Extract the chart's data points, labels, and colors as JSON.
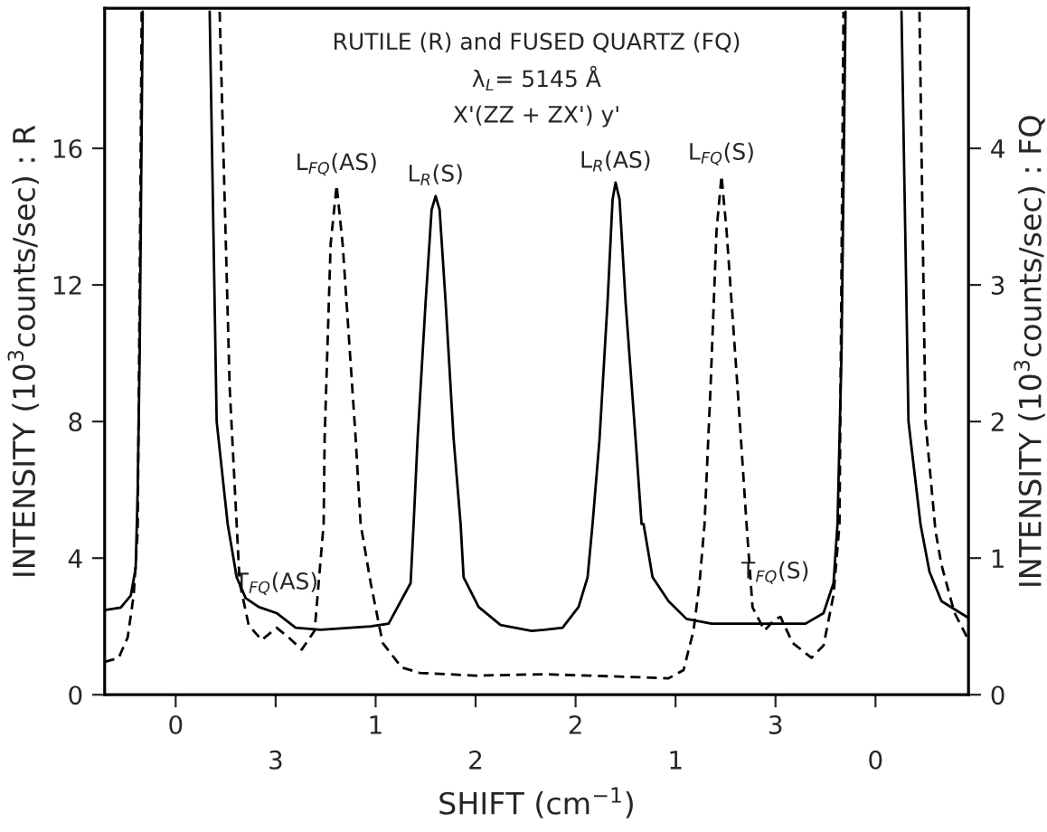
{
  "chart_data": {
    "type": "line",
    "title": "RUTILE (R) and FUSED QUARTZ (FQ)",
    "subtitle": "λ$_{L}$= 5145 Å\nX'(ZZ + ZX') y'",
    "xlabel": "SHIFT (cm$^{−1}$)",
    "ylabel": "INTENSITY (10$^{3}$counts/sec) : R",
    "y2label": "INTENSITY (10$^{3}$counts/sec) : FQ",
    "xlim": [
      -0.355,
      3.965
    ],
    "xticks": [
      0,
      1,
      2,
      3
    ],
    "x2lim": [
      3.855,
      -0.465
    ],
    "x2ticks": [
      3,
      2,
      1,
      0
    ],
    "ylim": [
      0,
      20.1
    ],
    "yticks": [
      0,
      4,
      8,
      12,
      16
    ],
    "y2lim": [
      0,
      5.025
    ],
    "y2ticks": [
      0,
      1,
      2,
      3,
      4
    ],
    "grid": false,
    "legend": false,
    "annotations": [
      {
        "text": "L$_{FQ}$(AS)",
        "x": 0.805,
        "y": 14.9
      },
      {
        "text": "L$_{R}$(S)",
        "x": 1.3,
        "y": 14.6
      },
      {
        "text": "L$_{R}$(AS)",
        "x": 2.2,
        "y": 15.0
      },
      {
        "text": "L$_{FQ}$(S)",
        "x": 2.73,
        "y": 15.2
      },
      {
        "text": "T$_{FQ}$(AS)",
        "x": 0.505,
        "y": 1.96
      },
      {
        "text": "T$_{FQ}$(S)",
        "x": 3.0,
        "y": 2.28
      }
    ],
    "series": [
      {
        "color": "#000000",
        "line_style": "solid",
        "x": [
          -0.355,
          -0.275,
          -0.225,
          -0.2,
          -0.19,
          -0.18,
          -0.165,
          0.0,
          0.17,
          0.205,
          0.26,
          0.305,
          0.35,
          0.415,
          0.505,
          0.6,
          0.725,
          0.975,
          1.065,
          1.175,
          1.19,
          1.21,
          1.25,
          1.28,
          1.3,
          1.32,
          1.35,
          1.39,
          1.425,
          1.44,
          1.515,
          1.625,
          1.78,
          1.845,
          1.935,
          2.015,
          2.06,
          2.085,
          2.12,
          2.16,
          2.185,
          2.2,
          2.22,
          2.25,
          2.3,
          2.33,
          2.34,
          2.385,
          2.465,
          2.555,
          2.68,
          2.9,
          3.15,
          3.24,
          3.29,
          3.31,
          3.33,
          3.35,
          3.5,
          3.63,
          3.665,
          3.725,
          3.77,
          3.83,
          3.965
        ],
        "values": [
          2.48,
          2.55,
          2.9,
          3.7,
          6,
          10,
          20,
          null,
          20,
          8,
          5,
          3.44,
          2.83,
          2.57,
          2.39,
          1.96,
          1.9,
          2.0,
          2.08,
          3.27,
          5,
          7.5,
          11.5,
          14.2,
          14.6,
          14.2,
          11.5,
          7.5,
          5,
          3.44,
          2.57,
          2.04,
          1.87,
          1.9,
          1.96,
          2.57,
          3.44,
          5,
          7.5,
          11.5,
          14.5,
          15.0,
          14.5,
          11.5,
          7.5,
          5,
          5,
          3.44,
          2.74,
          2.22,
          2.08,
          2.08,
          2.08,
          2.39,
          3.27,
          5,
          10,
          20,
          null,
          20,
          8,
          5,
          3.6,
          2.74,
          2.25
        ]
      },
      {
        "color": "#000000",
        "line_style": "dashed",
        "axis": "y2",
        "x": [
          -0.355,
          -0.285,
          -0.24,
          -0.21,
          -0.19,
          -0.18,
          -0.17,
          0.0,
          0.22,
          0.27,
          0.32,
          0.365,
          0.43,
          0.505,
          0.565,
          0.63,
          0.695,
          0.725,
          0.74,
          0.745,
          0.775,
          0.805,
          0.835,
          0.9,
          0.925,
          0.975,
          1.035,
          1.13,
          1.22,
          1.5,
          1.845,
          2.28,
          2.465,
          2.54,
          2.59,
          2.62,
          2.645,
          2.675,
          2.705,
          2.73,
          2.755,
          2.81,
          2.855,
          2.885,
          2.945,
          2.995,
          3.025,
          3.085,
          3.18,
          3.24,
          3.29,
          3.32,
          3.34,
          3.5,
          3.72,
          3.75,
          3.8,
          3.83,
          3.895,
          3.965
        ],
        "values": [
          0.24,
          0.27,
          0.42,
          0.73,
          1.2,
          3.0,
          5.0,
          null,
          5.0,
          2.25,
          0.82,
          0.51,
          0.4,
          0.49,
          0.42,
          0.33,
          0.47,
          0.99,
          1.25,
          1.88,
          3.3,
          3.73,
          3.3,
          1.88,
          1.25,
          0.82,
          0.38,
          0.2,
          0.16,
          0.14,
          0.15,
          0.13,
          0.12,
          0.18,
          0.47,
          0.82,
          1.25,
          2.25,
          3.4,
          3.8,
          3.4,
          2.25,
          1.25,
          0.64,
          0.47,
          0.55,
          0.57,
          0.38,
          0.27,
          0.36,
          0.73,
          1.25,
          5.0,
          null,
          5.0,
          2.0,
          1.2,
          0.95,
          0.6,
          0.4
        ]
      }
    ]
  }
}
